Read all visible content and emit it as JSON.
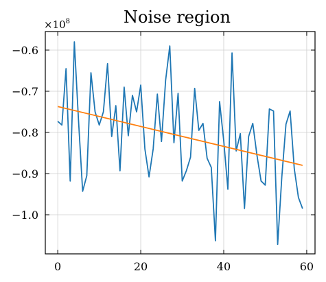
{
  "chart_data": {
    "type": "line",
    "title": "Noise region",
    "xlabel": "",
    "ylabel": "",
    "y_offset_text": {
      "base": "×10",
      "exponent": "8"
    },
    "xlim": [
      -3,
      62
    ],
    "ylim": [
      -1.095,
      -0.555
    ],
    "grid": true,
    "x_ticks": [
      0,
      20,
      40,
      60
    ],
    "y_ticks": [
      -1.0,
      -0.9,
      -0.8,
      -0.7,
      -0.6
    ],
    "x_tick_labels": [
      "0",
      "20",
      "40",
      "60"
    ],
    "y_tick_labels": [
      "−1.0",
      "−0.9",
      "−0.8",
      "−0.7",
      "−0.6"
    ],
    "series": [
      {
        "color": "#1f77b4",
        "x": [
          0,
          1,
          2,
          3,
          4,
          5,
          6,
          7,
          8,
          9,
          10,
          11,
          12,
          13,
          14,
          15,
          16,
          17,
          18,
          19,
          20,
          21,
          22,
          23,
          24,
          25,
          26,
          27,
          28,
          29,
          30,
          31,
          32,
          33,
          34,
          35,
          36,
          37,
          38,
          39,
          40,
          41,
          42,
          43,
          44,
          45,
          46,
          47,
          48,
          49,
          50,
          51,
          52,
          53,
          54,
          55,
          56,
          57,
          58,
          59
        ],
        "y": [
          -0.773,
          -0.782,
          -0.645,
          -0.918,
          -0.58,
          -0.77,
          -0.943,
          -0.905,
          -0.655,
          -0.75,
          -0.782,
          -0.75,
          -0.633,
          -0.81,
          -0.735,
          -0.893,
          -0.69,
          -0.808,
          -0.71,
          -0.75,
          -0.685,
          -0.84,
          -0.908,
          -0.84,
          -0.707,
          -0.822,
          -0.673,
          -0.59,
          -0.825,
          -0.705,
          -0.918,
          -0.893,
          -0.86,
          -0.693,
          -0.795,
          -0.778,
          -0.863,
          -0.885,
          -1.063,
          -0.725,
          -0.82,
          -0.938,
          -0.607,
          -0.845,
          -0.803,
          -0.985,
          -0.81,
          -0.778,
          -0.855,
          -0.918,
          -0.928,
          -0.743,
          -0.748,
          -1.072,
          -0.908,
          -0.78,
          -0.748,
          -0.888,
          -0.958,
          -0.985
        ]
      },
      {
        "color": "#ff7f0e",
        "x": [
          0,
          59
        ],
        "y": [
          -0.737,
          -0.88
        ]
      }
    ]
  }
}
